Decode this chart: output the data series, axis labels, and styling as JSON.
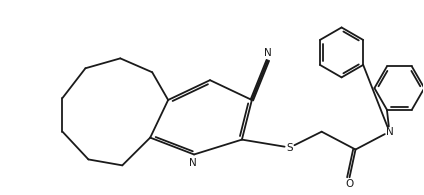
{
  "bg_color": "#ffffff",
  "line_color": "#1a1a1a",
  "line_width": 1.3,
  "figsize": [
    4.24,
    1.95
  ],
  "dpi": 100,
  "xlim": [
    0,
    10.5
  ],
  "ylim": [
    0,
    4.8
  ]
}
